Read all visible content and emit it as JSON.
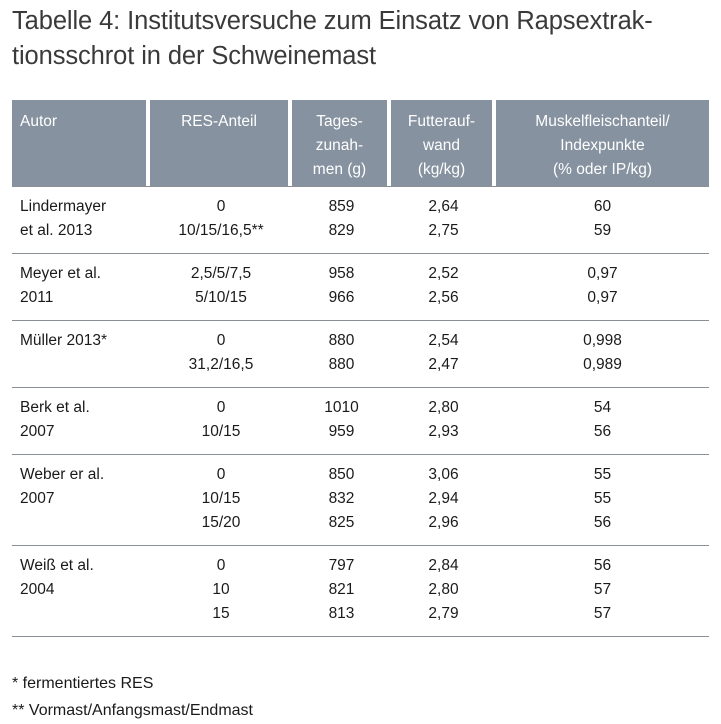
{
  "title": {
    "line1": "Tabelle 4: Institutsversuche zum Einsatz von Rapsextrak-",
    "line2": "tionsschrot in der Schweinemast"
  },
  "table": {
    "headers": {
      "autor": [
        "Autor"
      ],
      "res": [
        "RES-Anteil"
      ],
      "tageszunahmen": [
        "Tages-",
        "zunah-",
        "men (g)"
      ],
      "futteraufwand": [
        "Futterauf-",
        "wand",
        "(kg/kg)"
      ],
      "muskelfleisch": [
        "Muskelfleischanteil/",
        "Indexpunkte",
        "(% oder IP/kg)"
      ]
    },
    "groups": [
      {
        "autor": [
          "Lindermayer",
          "et al. 2013"
        ],
        "res": [
          "0",
          "10/15/16,5**"
        ],
        "tz": [
          "859",
          "829"
        ],
        "fa": [
          "2,64",
          "2,75"
        ],
        "mf": [
          "60",
          "59"
        ]
      },
      {
        "autor": [
          "Meyer et al.",
          "2011"
        ],
        "res": [
          "2,5/5/7,5",
          "5/10/15"
        ],
        "tz": [
          "958",
          "966"
        ],
        "fa": [
          "2,52",
          "2,56"
        ],
        "mf": [
          "0,97",
          "0,97"
        ]
      },
      {
        "autor": [
          "Müller 2013*"
        ],
        "res": [
          "0",
          "31,2/16,5"
        ],
        "tz": [
          "880",
          "880"
        ],
        "fa": [
          "2,54",
          "2,47"
        ],
        "mf": [
          "0,998",
          "0,989"
        ]
      },
      {
        "autor": [
          "Berk et al.",
          "2007"
        ],
        "res": [
          "0",
          "10/15"
        ],
        "tz": [
          "1010",
          "959"
        ],
        "fa": [
          "2,80",
          "2,93"
        ],
        "mf": [
          "54",
          "56"
        ]
      },
      {
        "autor": [
          "Weber er al.",
          "2007"
        ],
        "res": [
          "0",
          "10/15",
          "15/20"
        ],
        "tz": [
          "850",
          "832",
          "825"
        ],
        "fa": [
          "3,06",
          "2,94",
          "2,96"
        ],
        "mf": [
          "55",
          "55",
          "56"
        ]
      },
      {
        "autor": [
          "Weiß et al.",
          "2004"
        ],
        "res": [
          "0",
          "10",
          "15"
        ],
        "tz": [
          "797",
          "821",
          "813"
        ],
        "fa": [
          "2,84",
          "2,80",
          "2,79"
        ],
        "mf": [
          "56",
          "57",
          "57"
        ]
      }
    ]
  },
  "footnotes": [
    "* fermentiertes RES",
    "** Vormast/Anfangsmast/Endmast"
  ],
  "colors": {
    "header_bg": "#8692a0",
    "header_text": "#ffffff",
    "rule": "#8a8f96",
    "title_text": "#3a3a3a"
  }
}
